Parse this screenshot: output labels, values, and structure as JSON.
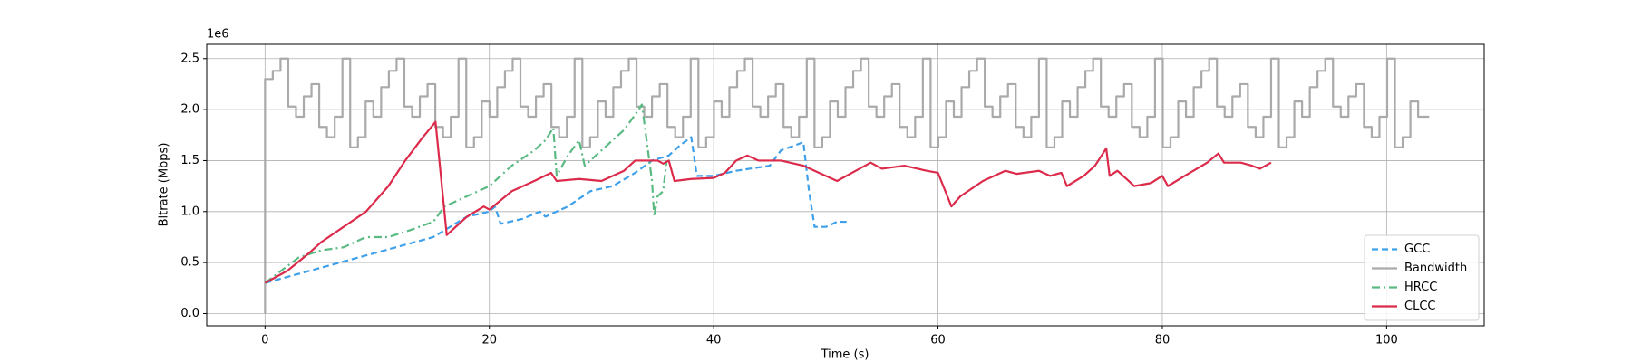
{
  "chart_data": {
    "type": "line",
    "x_label": "Time (s)",
    "y_label": "Bitrate (Mbps)",
    "y_offset_label": "1e6",
    "xlim": [
      -5.2,
      108.7
    ],
    "ylim": [
      -0.12,
      2.64
    ],
    "xticks": [
      0,
      20,
      40,
      60,
      80,
      100
    ],
    "yticks": [
      {
        "value": 0,
        "label": "0.0"
      },
      0.5,
      {
        "value": 1,
        "label": "1.0"
      },
      1.5,
      {
        "value": 2,
        "label": "2.0"
      },
      2.5
    ],
    "grid": true,
    "legend": "lower right",
    "series": [
      {
        "name": "GCC",
        "color": "#3fa0ea",
        "linestyle": "dashed",
        "x": [
          0,
          10,
          15,
          18,
          20,
          20.5,
          21,
          23,
          24.5,
          25,
          27,
          29,
          31,
          33,
          34.5,
          36,
          37,
          38,
          38.5,
          40,
          42,
          45,
          46,
          48,
          48.5,
          49,
          50,
          51,
          52
        ],
        "values": [
          0.3,
          0.6,
          0.75,
          0.95,
          1.0,
          1.05,
          0.88,
          0.93,
          1.0,
          0.95,
          1.05,
          1.2,
          1.25,
          1.38,
          1.5,
          1.55,
          1.65,
          1.73,
          1.35,
          1.35,
          1.4,
          1.45,
          1.6,
          1.68,
          1.2,
          0.85,
          0.85,
          0.9,
          0.9
        ]
      },
      {
        "name": "Bandwidth",
        "color": "#aaaaaa",
        "linestyle": "solid",
        "drawstyle": "steps-post",
        "x": [
          0,
          0,
          0.69,
          1.38,
          2.07,
          2.76,
          3.45,
          4.14,
          4.83,
          5.52,
          6.21,
          6.9,
          7.59,
          8.28,
          8.97,
          9.66,
          10.35,
          11.04,
          11.73,
          12.42,
          13.11,
          13.8,
          14.49,
          15.18,
          15.87,
          16.56,
          17.25,
          17.94,
          18.63,
          19.32,
          20.01,
          20.7,
          21.39,
          22.08,
          22.77,
          23.46,
          24.15,
          24.84,
          25.53,
          26.22,
          26.91,
          27.6,
          28.29,
          28.98,
          29.67,
          30.36,
          31.05,
          31.74,
          32.43,
          33.12,
          33.81,
          34.5,
          35.19,
          35.88,
          36.57,
          37.26,
          37.95,
          38.64,
          39.33,
          40.02,
          40.71,
          41.4,
          42.09,
          42.78,
          43.47,
          44.16,
          44.85,
          45.54,
          46.23,
          46.92,
          47.61,
          48.3,
          48.99,
          49.68,
          50.37,
          51.06,
          51.75,
          52.44,
          53.13,
          53.82,
          54.51,
          55.2,
          55.89,
          56.58,
          57.27,
          57.96,
          58.65,
          59.34,
          60.03,
          60.72,
          61.41,
          62.1,
          62.79,
          63.48,
          64.17,
          64.86,
          65.55,
          66.24,
          66.93,
          67.62,
          68.31,
          69,
          69.69,
          70.38,
          71.07,
          71.76,
          72.45,
          73.14,
          73.83,
          74.52,
          75.21,
          75.9,
          76.59,
          77.28,
          77.97,
          78.66,
          79.35,
          80.04,
          80.73,
          81.42,
          82.11,
          82.8,
          83.49,
          84.18,
          84.87,
          85.56,
          86.25,
          86.94,
          87.63,
          88.32,
          89.01,
          89.7,
          90.39,
          91.08,
          91.77,
          92.46,
          93.15,
          93.84,
          94.53,
          95.22,
          95.91,
          96.6,
          97.29,
          97.98,
          98.67,
          99.36,
          100.05,
          100.74,
          101.43,
          102.12,
          102.81,
          103.8
        ],
        "values": [
          0,
          2.3,
          2.38,
          2.5,
          2.03,
          1.93,
          2.13,
          2.25,
          1.83,
          1.73,
          1.93,
          2.5,
          1.63,
          1.73,
          2.08,
          1.93,
          2.22,
          2.38,
          2.5,
          2.03,
          1.93,
          2.13,
          2.25,
          1.83,
          1.73,
          1.93,
          2.5,
          1.63,
          1.73,
          2.08,
          1.93,
          2.22,
          2.38,
          2.5,
          2.03,
          1.93,
          2.13,
          2.25,
          1.83,
          1.73,
          1.93,
          2.5,
          1.63,
          1.73,
          2.08,
          1.93,
          2.22,
          2.38,
          2.5,
          2.03,
          1.93,
          2.13,
          2.25,
          1.83,
          1.73,
          1.93,
          2.5,
          1.63,
          1.73,
          2.08,
          1.93,
          2.22,
          2.38,
          2.5,
          2.03,
          1.93,
          2.13,
          2.25,
          1.83,
          1.73,
          1.93,
          2.5,
          1.63,
          1.73,
          2.08,
          1.93,
          2.22,
          2.38,
          2.5,
          2.03,
          1.93,
          2.13,
          2.25,
          1.83,
          1.73,
          1.93,
          2.5,
          1.63,
          1.73,
          2.08,
          1.93,
          2.22,
          2.38,
          2.5,
          2.03,
          1.93,
          2.13,
          2.25,
          1.83,
          1.73,
          1.93,
          2.5,
          1.63,
          1.73,
          2.08,
          1.93,
          2.22,
          2.38,
          2.5,
          2.03,
          1.93,
          2.13,
          2.25,
          1.83,
          1.73,
          1.93,
          2.5,
          1.63,
          1.73,
          2.08,
          1.93,
          2.22,
          2.38,
          2.5,
          2.03,
          1.93,
          2.13,
          2.25,
          1.83,
          1.73,
          1.93,
          2.5,
          1.63,
          1.73,
          2.08,
          1.93,
          2.22,
          2.38,
          2.5,
          2.03,
          1.93,
          2.13,
          2.25,
          1.83,
          1.73,
          1.93,
          2.5,
          1.63,
          1.73,
          2.08,
          1.93,
          1.93
        ]
      },
      {
        "name": "HRCC",
        "color": "#5aba82",
        "linestyle": "dashdot",
        "x": [
          0,
          3,
          5,
          7,
          9,
          11,
          13,
          15,
          16,
          18,
          20,
          21,
          22,
          24,
          25,
          25.7,
          26,
          27,
          28,
          28.5,
          30,
          32,
          33,
          33.6,
          34.5,
          34.7,
          35,
          35.5,
          35.8
        ],
        "values": [
          0.3,
          0.55,
          0.62,
          0.65,
          0.75,
          0.75,
          0.82,
          0.9,
          1.05,
          1.15,
          1.25,
          1.35,
          1.45,
          1.6,
          1.7,
          1.82,
          1.35,
          1.55,
          1.7,
          1.45,
          1.6,
          1.8,
          1.95,
          2.05,
          1.3,
          0.95,
          1.15,
          1.2,
          1.5
        ]
      },
      {
        "name": "CLCC",
        "color": "#dc2a4a",
        "linestyle": "solid",
        "x": [
          0,
          2,
          4,
          5,
          7,
          9,
          11,
          12.5,
          14,
          15.2,
          16.2,
          18,
          19.5,
          20,
          22,
          24,
          25.5,
          26,
          28,
          30,
          32,
          33,
          35,
          35.5,
          36,
          36.5,
          38,
          40,
          41,
          42,
          43,
          44,
          46,
          48,
          49,
          50,
          51,
          53,
          54,
          55,
          57,
          59,
          60,
          61.2,
          62,
          64,
          66,
          67,
          69,
          70,
          71,
          71.5,
          73,
          74,
          75,
          75.3,
          76,
          77,
          77.5,
          79,
          80,
          80.5,
          82,
          84,
          85,
          85.5,
          87,
          88,
          88.7,
          89.7
        ],
        "values": [
          0.3,
          0.42,
          0.6,
          0.7,
          0.85,
          1.0,
          1.25,
          1.5,
          1.72,
          1.88,
          0.77,
          0.95,
          1.05,
          1.02,
          1.2,
          1.3,
          1.38,
          1.3,
          1.32,
          1.3,
          1.4,
          1.5,
          1.5,
          1.47,
          1.5,
          1.3,
          1.32,
          1.33,
          1.38,
          1.5,
          1.55,
          1.5,
          1.5,
          1.45,
          1.4,
          1.35,
          1.3,
          1.42,
          1.48,
          1.42,
          1.45,
          1.4,
          1.38,
          1.05,
          1.15,
          1.3,
          1.4,
          1.37,
          1.4,
          1.35,
          1.38,
          1.25,
          1.35,
          1.45,
          1.62,
          1.35,
          1.4,
          1.3,
          1.25,
          1.28,
          1.35,
          1.25,
          1.35,
          1.48,
          1.57,
          1.48,
          1.48,
          1.45,
          1.42,
          1.48
        ]
      }
    ]
  }
}
